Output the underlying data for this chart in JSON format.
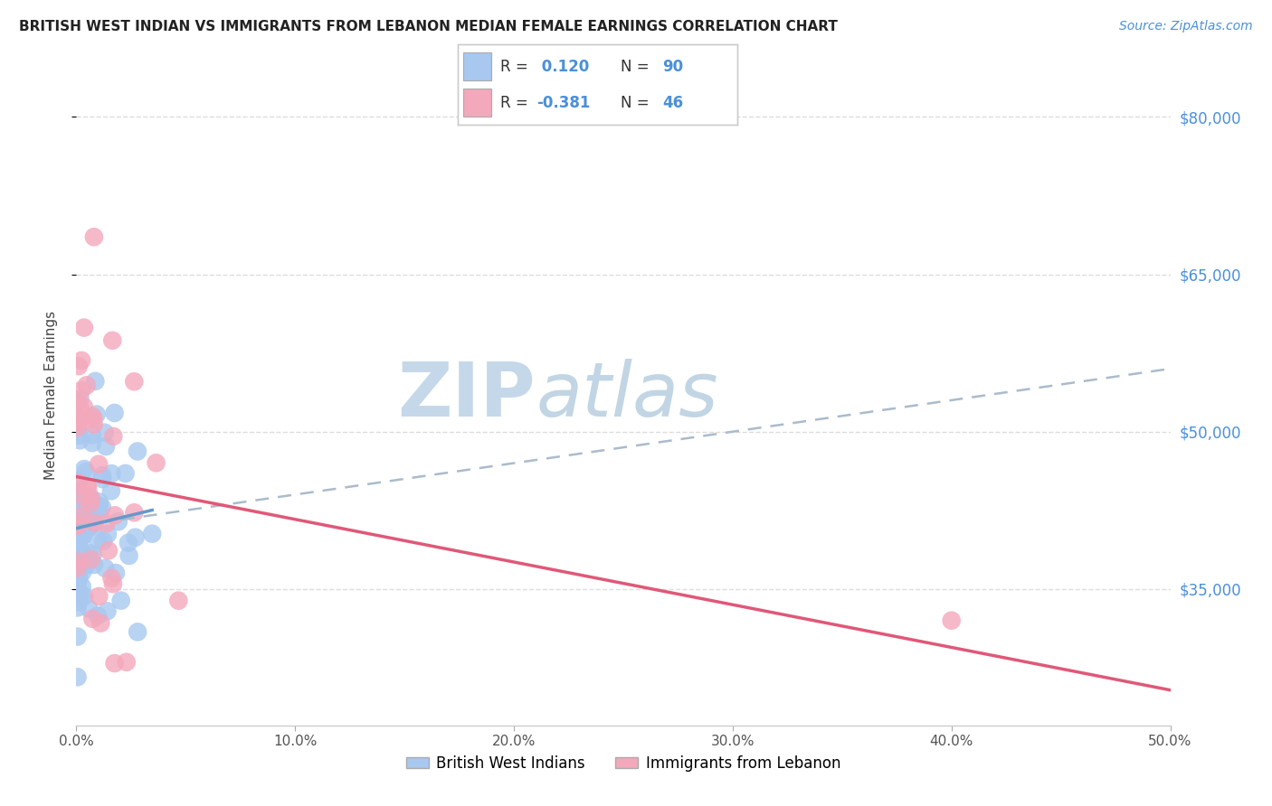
{
  "title": "BRITISH WEST INDIAN VS IMMIGRANTS FROM LEBANON MEDIAN FEMALE EARNINGS CORRELATION CHART",
  "source": "Source: ZipAtlas.com",
  "ylabel": "Median Female Earnings",
  "xlim": [
    0,
    0.5
  ],
  "ylim": [
    22000,
    85000
  ],
  "xticks": [
    0.0,
    0.1,
    0.2,
    0.3,
    0.4,
    0.5
  ],
  "xtick_labels": [
    "0.0%",
    "10.0%",
    "20.0%",
    "30.0%",
    "40.0%",
    "50.0%"
  ],
  "yticks": [
    35000,
    50000,
    65000,
    80000
  ],
  "ytick_labels": [
    "$35,000",
    "$50,000",
    "$65,000",
    "$80,000"
  ],
  "blue_color": "#a8c8f0",
  "pink_color": "#f4a8bc",
  "blue_line_color": "#6699cc",
  "blue_line_style": "--",
  "pink_line_color": "#e05878",
  "watermark_zip": "ZIP",
  "watermark_atlas": "atlas",
  "watermark_color": "#c5d8ea",
  "legend1": "British West Indians",
  "legend2": "Immigrants from Lebanon",
  "grid_color": "#dddddd",
  "title_fontsize": 11,
  "source_fontsize": 10,
  "blue_scatter_seed": 42,
  "pink_scatter_seed": 99,
  "blue_R": 0.12,
  "blue_N": 90,
  "pink_R": -0.381,
  "pink_N": 46,
  "blue_line_intercept": 41000,
  "blue_line_slope": 30000,
  "pink_line_intercept": 46000,
  "pink_line_slope": -55000
}
